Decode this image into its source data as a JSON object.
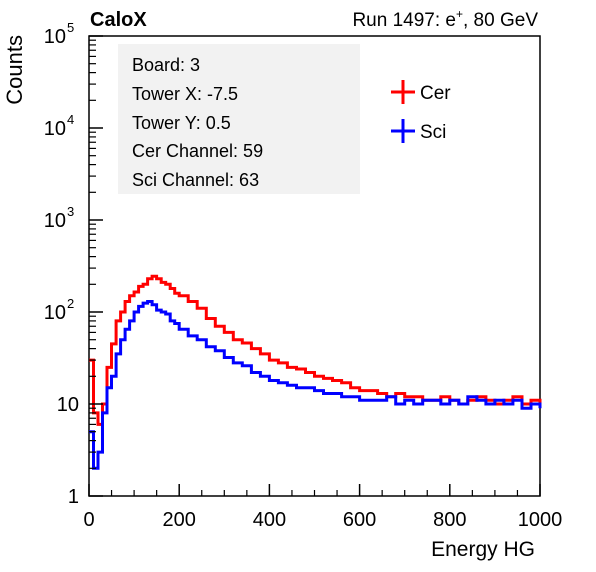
{
  "header": {
    "brand": "CaloX",
    "run_prefix": "Run 1497: e",
    "run_superscript": "+",
    "run_suffix": ", 80 GeV"
  },
  "info_box": {
    "lines": [
      "Board: 3",
      "Tower X: -7.5",
      "Tower Y: 0.5",
      "Cer Channel: 59",
      "Sci Channel: 63"
    ]
  },
  "chart_data": {
    "type": "line",
    "xlabel": "Energy HG",
    "ylabel": "Counts",
    "xlim": [
      0,
      1000
    ],
    "ylim": [
      1,
      100000
    ],
    "yscale": "log",
    "grid": false,
    "legend_position": "top-right",
    "x_ticks": [
      0,
      200,
      400,
      600,
      800,
      1000
    ],
    "x_tick_labels": [
      "0",
      "200",
      "400",
      "600",
      "800",
      "1000"
    ],
    "y_tick_labels": [
      {
        "value": 1,
        "base": "1",
        "exp": ""
      },
      {
        "value": 10,
        "base": "10",
        "exp": ""
      },
      {
        "value": 100,
        "base": "10",
        "exp": "2"
      },
      {
        "value": 1000,
        "base": "10",
        "exp": "3"
      },
      {
        "value": 10000,
        "base": "10",
        "exp": "4"
      },
      {
        "value": 100000,
        "base": "10",
        "exp": "5"
      }
    ],
    "series": [
      {
        "name": "Cer",
        "color": "#ff0000",
        "x": [
          0,
          10,
          20,
          30,
          40,
          50,
          60,
          70,
          80,
          90,
          100,
          110,
          120,
          130,
          140,
          150,
          160,
          170,
          180,
          190,
          200,
          220,
          240,
          260,
          280,
          300,
          320,
          340,
          360,
          380,
          400,
          420,
          440,
          460,
          480,
          500,
          520,
          540,
          560,
          580,
          600,
          620,
          640,
          660,
          680,
          700,
          720,
          740,
          760,
          780,
          800,
          820,
          840,
          860,
          880,
          900,
          920,
          940,
          960,
          980,
          1000
        ],
        "y": [
          30,
          8,
          6,
          10,
          25,
          45,
          80,
          100,
          130,
          150,
          165,
          190,
          200,
          230,
          245,
          230,
          210,
          200,
          180,
          160,
          150,
          130,
          110,
          85,
          70,
          60,
          50,
          46,
          40,
          35,
          30,
          28,
          25,
          24,
          22,
          20,
          19,
          18,
          17,
          15,
          14,
          14,
          13,
          12,
          13,
          12,
          12,
          11,
          11,
          12,
          11,
          10,
          11,
          12,
          11,
          10,
          11,
          12,
          10,
          11,
          10
        ]
      },
      {
        "name": "Sci",
        "color": "#0000ff",
        "x": [
          0,
          10,
          20,
          30,
          40,
          50,
          60,
          70,
          80,
          90,
          100,
          110,
          120,
          130,
          140,
          150,
          160,
          170,
          180,
          190,
          200,
          220,
          240,
          260,
          280,
          300,
          320,
          340,
          360,
          380,
          400,
          420,
          440,
          460,
          480,
          500,
          520,
          540,
          560,
          580,
          600,
          620,
          640,
          660,
          680,
          700,
          720,
          740,
          760,
          780,
          800,
          820,
          840,
          860,
          880,
          900,
          920,
          940,
          960,
          980,
          1000
        ],
        "y": [
          5,
          2,
          3,
          8,
          15,
          20,
          35,
          50,
          65,
          80,
          100,
          115,
          125,
          130,
          120,
          105,
          100,
          95,
          80,
          75,
          65,
          55,
          50,
          42,
          38,
          32,
          28,
          26,
          22,
          20,
          18,
          17,
          16,
          15,
          15,
          14,
          13,
          13,
          12,
          12,
          11,
          11,
          11,
          12,
          10,
          11,
          10,
          11,
          11,
          10,
          11,
          10,
          12,
          11,
          10,
          11,
          10,
          11,
          9,
          10,
          9
        ]
      }
    ]
  }
}
